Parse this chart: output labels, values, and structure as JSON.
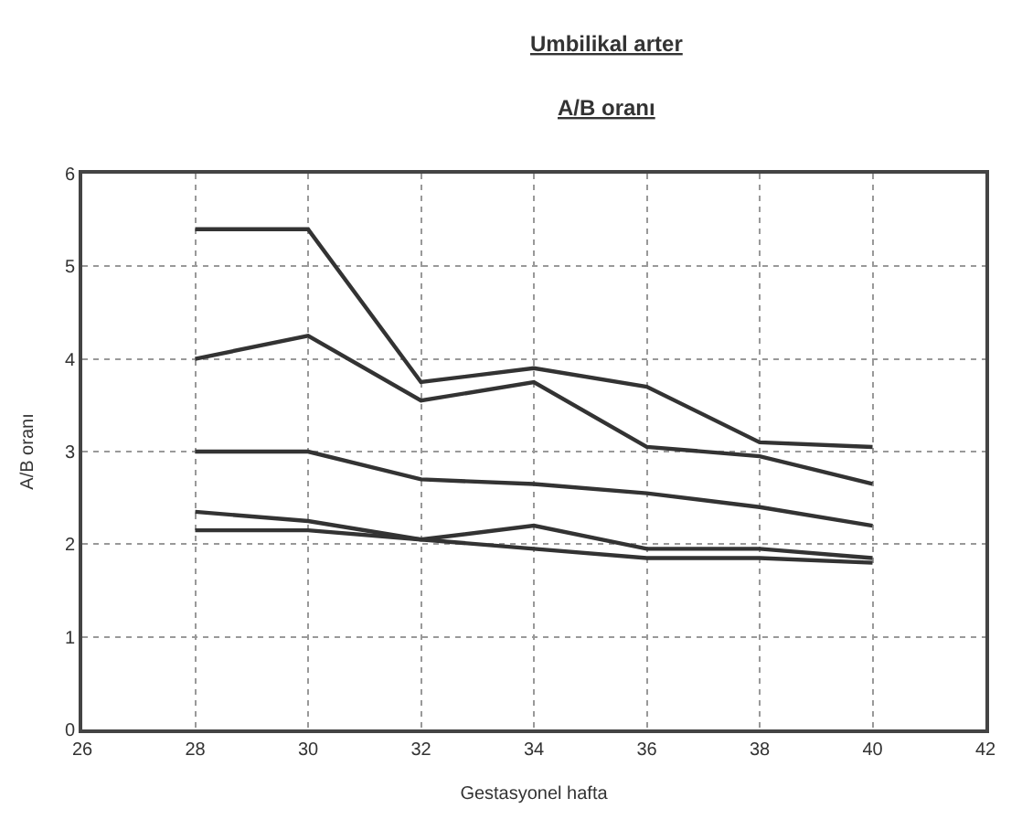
{
  "chart_data": {
    "type": "line",
    "title": "Umbilikal arter",
    "subtitle": "A/B oranı",
    "xlabel": "Gestasyonel hafta",
    "ylabel": "A/B oranı",
    "x": [
      28,
      30,
      32,
      34,
      36,
      38,
      40
    ],
    "series": [
      {
        "color": "#333333",
        "values": [
          5.4,
          5.4,
          3.75,
          3.9,
          3.7,
          3.1,
          3.05
        ]
      },
      {
        "color": "#333333",
        "values": [
          4.0,
          4.25,
          3.55,
          3.75,
          3.05,
          2.95,
          2.65
        ]
      },
      {
        "color": "#333333",
        "values": [
          3.0,
          3.0,
          2.7,
          2.65,
          2.55,
          2.4,
          2.2
        ]
      },
      {
        "color": "#333333",
        "values": [
          2.35,
          2.25,
          2.05,
          2.2,
          1.95,
          1.95,
          1.85
        ]
      },
      {
        "color": "#333333",
        "values": [
          2.15,
          2.15,
          2.05,
          1.95,
          1.85,
          1.85,
          1.8
        ]
      }
    ],
    "xlim": [
      26,
      42
    ],
    "xticks": [
      26,
      28,
      30,
      32,
      34,
      36,
      38,
      40,
      42
    ],
    "ylim": [
      0,
      6
    ],
    "yticks": [
      0,
      1,
      2,
      3,
      4,
      5,
      6
    ],
    "grid": true,
    "line_style": "solid"
  }
}
